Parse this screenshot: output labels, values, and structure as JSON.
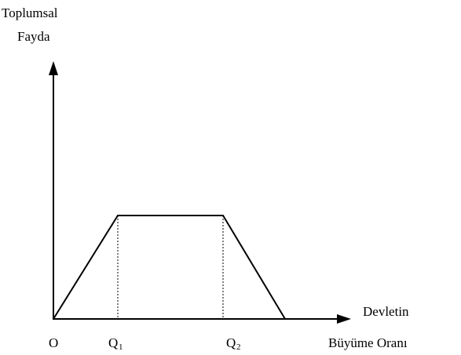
{
  "y_axis_label": [
    "Toplumsal",
    "Fayda"
  ],
  "x_axis_label": [
    "Devletin",
    "Büyüme Oranı"
  ],
  "origin": "O",
  "points": [
    {
      "label": "Q",
      "subscript": "1"
    },
    {
      "label": "Q",
      "subscript": "2"
    }
  ]
}
